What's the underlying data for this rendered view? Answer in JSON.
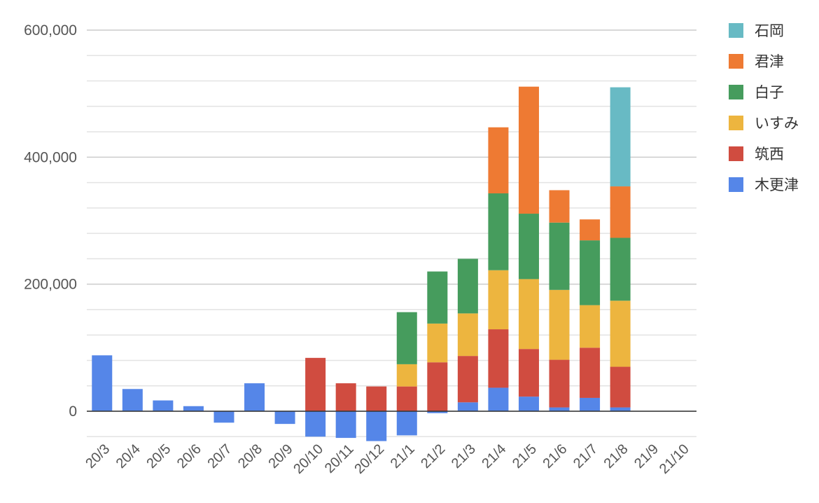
{
  "chart_data": {
    "type": "bar",
    "stacked": true,
    "categories": [
      "20/3",
      "20/4",
      "20/5",
      "20/6",
      "20/7",
      "20/8",
      "20/9",
      "20/10",
      "20/11",
      "20/12",
      "21/1",
      "21/2",
      "21/3",
      "21/4",
      "21/5",
      "21/6",
      "21/7",
      "21/8",
      "21/9",
      "21/10"
    ],
    "series": [
      {
        "name": "木更津",
        "color": "#5586E8",
        "values": [
          88000,
          35000,
          17000,
          8000,
          -18000,
          44000,
          -20000,
          -40000,
          -42000,
          -47000,
          -38000,
          -3000,
          14000,
          37000,
          23000,
          6000,
          21000,
          6000,
          0,
          0
        ]
      },
      {
        "name": "筑西",
        "color": "#D04C40",
        "values": [
          0,
          0,
          0,
          0,
          0,
          0,
          0,
          84000,
          44000,
          39000,
          39000,
          77000,
          73000,
          92000,
          75000,
          75000,
          79000,
          64000,
          0,
          0
        ]
      },
      {
        "name": "いすみ",
        "color": "#EDB53F",
        "values": [
          0,
          0,
          0,
          0,
          0,
          0,
          0,
          0,
          0,
          0,
          35000,
          61000,
          67000,
          93000,
          110000,
          110000,
          67000,
          104000,
          0,
          0
        ]
      },
      {
        "name": "白子",
        "color": "#469C5D",
        "values": [
          0,
          0,
          0,
          0,
          0,
          0,
          0,
          0,
          0,
          0,
          82000,
          82000,
          86000,
          121000,
          103000,
          106000,
          102000,
          99000,
          0,
          0
        ]
      },
      {
        "name": "君津",
        "color": "#EE7A33",
        "values": [
          0,
          0,
          0,
          0,
          0,
          0,
          0,
          0,
          0,
          0,
          0,
          0,
          0,
          104000,
          200000,
          51000,
          33000,
          81000,
          0,
          0
        ]
      },
      {
        "name": "石岡",
        "color": "#68BAC4",
        "values": [
          0,
          0,
          0,
          0,
          0,
          0,
          0,
          0,
          0,
          0,
          0,
          0,
          0,
          0,
          0,
          0,
          0,
          156000,
          0,
          0
        ]
      }
    ],
    "yaxis": {
      "min": -40000,
      "max": 600000,
      "labeled_ticks": [
        0,
        200000,
        400000,
        600000
      ],
      "tick_labels": [
        "0",
        "200,000",
        "400,000",
        "600,000"
      ],
      "minor_step": 40000
    },
    "grid": true,
    "legend_position": "right",
    "legend_order": [
      "石岡",
      "君津",
      "白子",
      "いすみ",
      "筑西",
      "木更津"
    ]
  }
}
